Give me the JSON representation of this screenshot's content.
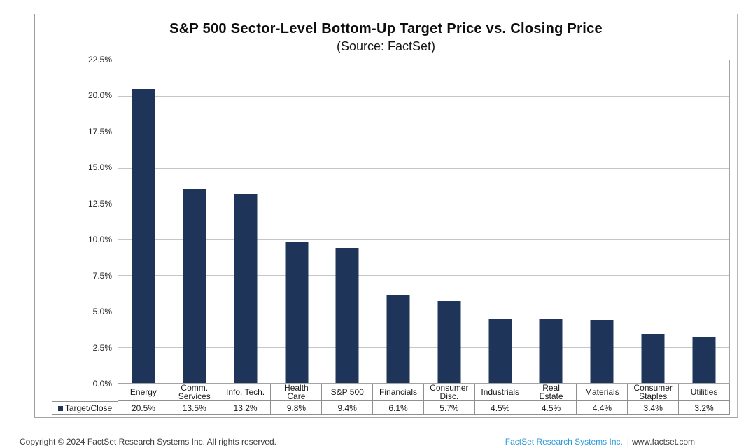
{
  "page": {
    "title": "S&P 500 Sector-Level Bottom-Up Target Price vs. Closing Price",
    "subtitle": "(Source: FactSet)"
  },
  "chart_data": {
    "type": "bar",
    "title": "S&P 500 Sector-Level Bottom-Up Target Price vs. Closing Price",
    "subtitle": "(Source: FactSet)",
    "series_name": "Target/Close",
    "categories": [
      "Energy",
      "Comm. Services",
      "Info. Tech.",
      "Health Care",
      "S&P 500",
      "Financials",
      "Consumer Disc.",
      "Industrials",
      "Real Estate",
      "Materials",
      "Consumer Staples",
      "Utilities"
    ],
    "category_display": [
      "Energy",
      "Comm.\nServices",
      "Info. Tech.",
      "Health\nCare",
      "S&P 500",
      "Financials",
      "Consumer\nDisc.",
      "Industrials",
      "Real\nEstate",
      "Materials",
      "Consumer\nStaples",
      "Utilities"
    ],
    "values": [
      20.5,
      13.5,
      13.2,
      9.8,
      9.4,
      6.1,
      5.7,
      4.5,
      4.5,
      4.4,
      3.4,
      3.2
    ],
    "value_labels": [
      "20.5%",
      "13.5%",
      "13.2%",
      "9.8%",
      "9.4%",
      "6.1%",
      "5.7%",
      "4.5%",
      "4.5%",
      "4.4%",
      "3.4%",
      "3.2%"
    ],
    "xlabel": "",
    "ylabel": "",
    "ylim": [
      0,
      22.5
    ],
    "ytick_step": 2.5,
    "ytick_labels_top_to_bottom": [
      "22.5%",
      "20.0%",
      "17.5%",
      "15.0%",
      "12.5%",
      "10.0%",
      "7.5%",
      "5.0%",
      "2.5%",
      "0.0%"
    ],
    "grid": true,
    "legend_position": "bottom-left-table",
    "bar_color": "#1f3459",
    "gridline_color": "#c6c6c6"
  },
  "footer": {
    "copyright": "Copyright © 2024 FactSet Research Systems Inc. All rights reserved.",
    "link": "FactSet Research Systems Inc.",
    "separator": "|",
    "website": "www.factset.com",
    "link_color": "#2e9bd6"
  }
}
